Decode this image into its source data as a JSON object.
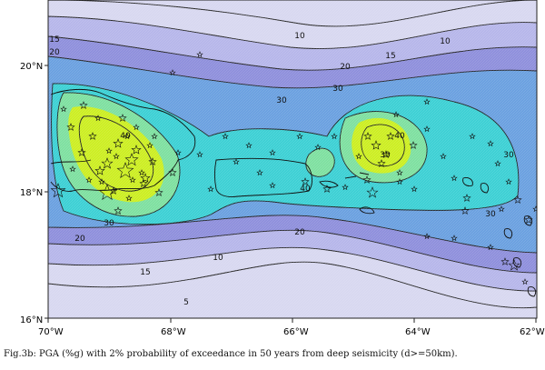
{
  "map": {
    "lat_labels": [
      "20°N",
      "18°N",
      "16°N"
    ],
    "lon_labels": [
      "70°W",
      "68°W",
      "66°W",
      "64°W",
      "62°W"
    ],
    "contour_labels": [
      "5",
      "10",
      "15",
      "20",
      "30",
      "40",
      "40",
      "30",
      "20",
      "10",
      "15",
      "20",
      "30",
      "30",
      "10",
      "15",
      "20",
      "30",
      "40",
      "30"
    ],
    "levels": [
      5,
      10,
      15,
      20,
      30,
      40
    ],
    "colors": {
      "band_0": "#f4f4fb",
      "band_5": "#d8d8f0",
      "band_10": "#b6b6ea",
      "band_15": "#8e8fdc",
      "band_20": "#6aa0e0",
      "band_30": "#3cd0d4",
      "band_40": "#7ee0a0",
      "band_peak": "#ccee22",
      "contour": "#222222",
      "coast": "#111111"
    },
    "markers": "star",
    "caption": "Fig.3b:  PGA (%g) with 2% probability of exceedance in 50 years from deep seismicity (d>=50km)."
  }
}
